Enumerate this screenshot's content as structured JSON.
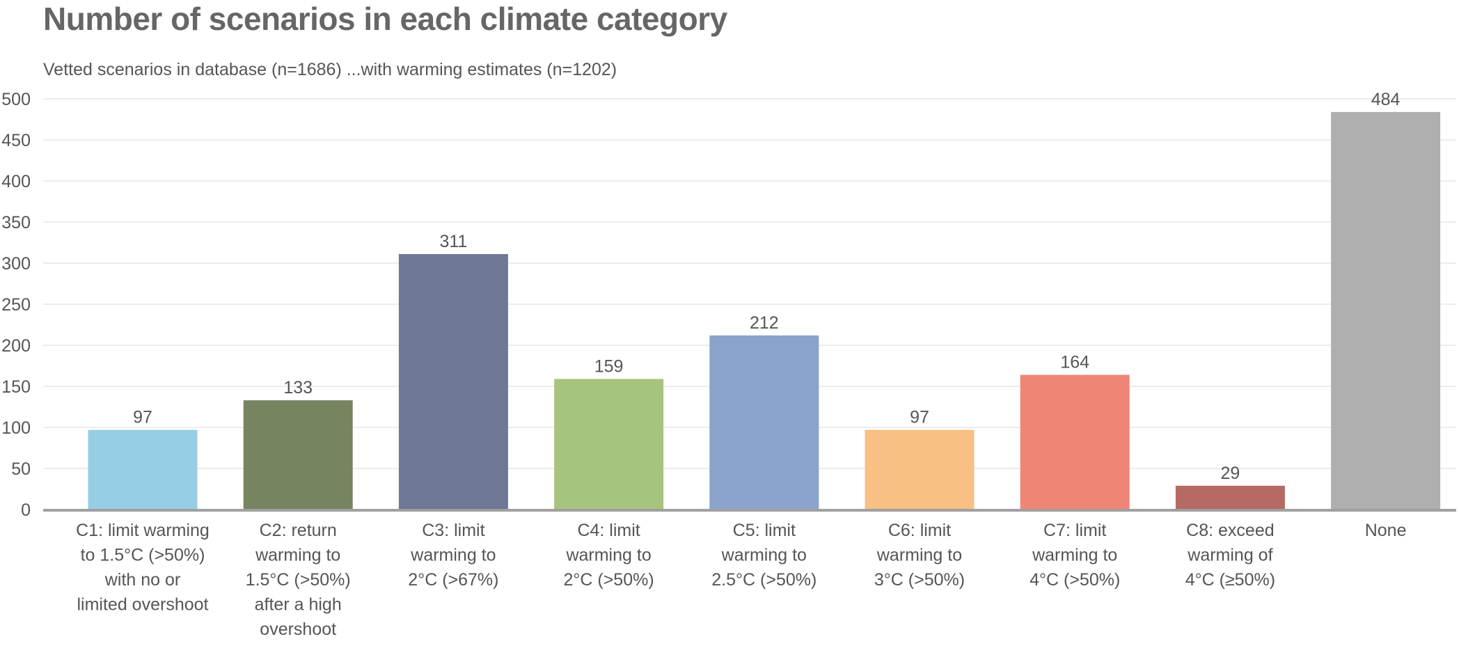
{
  "chart_data": {
    "type": "bar",
    "title": "Number of scenarios in each climate category",
    "subtitle": "Vetted scenarios in database (n=1686) ...with warming estimates (n=1202)",
    "xlabel": "",
    "ylabel": "",
    "ylim": [
      0,
      500
    ],
    "yticks": [
      "0",
      "50",
      "100",
      "150",
      "200",
      "250",
      "300",
      "350",
      "400",
      "450",
      "500"
    ],
    "grid": true,
    "categories": [
      [
        "C1: limit warming",
        "to 1.5°C (>50%)",
        "with no or",
        "limited overshoot"
      ],
      [
        "C2: return",
        "warming to",
        "1.5°C (>50%)",
        "after a high",
        "overshoot"
      ],
      [
        "C3: limit",
        "warming to",
        "2°C (>67%)"
      ],
      [
        "C4: limit",
        "warming to",
        "2°C (>50%)"
      ],
      [
        "C5: limit",
        "warming to",
        "2.5°C (>50%)"
      ],
      [
        "C6: limit",
        "warming to",
        "3°C (>50%)"
      ],
      [
        "C7: limit",
        "warming to",
        "4°C (>50%)"
      ],
      [
        "C8: exceed",
        "warming of",
        "4°C (≥50%)"
      ],
      [
        "None"
      ]
    ],
    "values": [
      97,
      133,
      311,
      159,
      212,
      97,
      164,
      29,
      484
    ],
    "colors": [
      "#96cfe3",
      "#768560",
      "#6e7896",
      "#a6c47e",
      "#8aa3cc",
      "#f8c082",
      "#ef8574",
      "#b56b63",
      "#afafaf"
    ]
  }
}
